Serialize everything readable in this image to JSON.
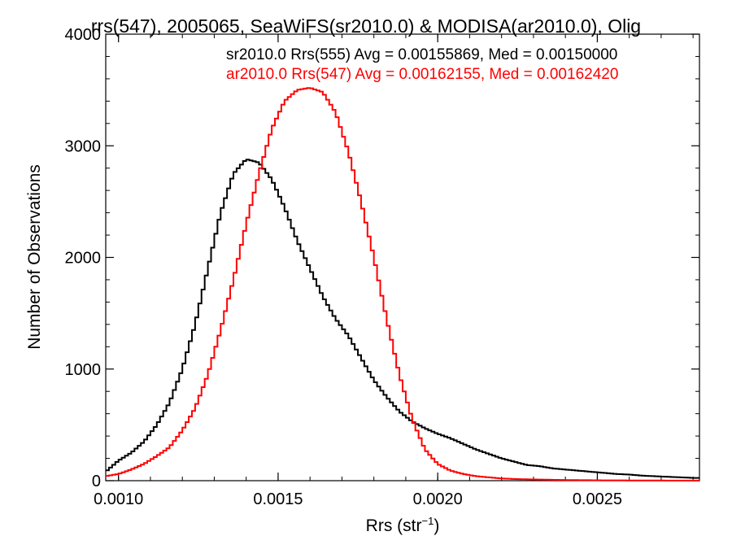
{
  "chart_data": {
    "type": "line",
    "step": true,
    "title": "rrs(547), 2005065, SeaWiFS(sr2010.0) & MODISA(ar2010.0), Olig",
    "xlabel": "Rrs (str",
    "xlabel_sup": "−1",
    "xlabel_end": ")",
    "ylabel": "Number of Observations",
    "xlim": [
      0.00096,
      0.00282
    ],
    "ylim": [
      0,
      4000
    ],
    "xticks": [
      0.001,
      0.0015,
      0.002,
      0.0025
    ],
    "xtick_labels": [
      "0.0010",
      "0.0015",
      "0.0020",
      "0.0025"
    ],
    "yticks": [
      0,
      1000,
      2000,
      3000,
      4000
    ],
    "ytick_labels": [
      "0",
      "1000",
      "2000",
      "3000",
      "4000"
    ],
    "bin_width": 1e-05,
    "series": [
      {
        "name": "sr2010.0 Rrs(555) Avg = 0.00155869, Med = 0.00150000",
        "color": "#000000",
        "x": [
          0.00096,
          0.001,
          0.00104,
          0.00108,
          0.00112,
          0.00116,
          0.0012,
          0.00124,
          0.00128,
          0.00132,
          0.00136,
          0.0014,
          0.00144,
          0.00148,
          0.00152,
          0.00156,
          0.0016,
          0.00164,
          0.00168,
          0.00172,
          0.00176,
          0.0018,
          0.00184,
          0.00188,
          0.00192,
          0.00196,
          0.002,
          0.00204,
          0.00208,
          0.00212,
          0.00216,
          0.0022,
          0.00224,
          0.00228,
          0.00232,
          0.00236,
          0.0024,
          0.00244,
          0.00248,
          0.00252,
          0.00256,
          0.0026,
          0.00264,
          0.00268,
          0.00272,
          0.00276,
          0.0028,
          0.00282
        ],
        "y": [
          80,
          180,
          250,
          350,
          500,
          700,
          1000,
          1400,
          1900,
          2400,
          2750,
          2880,
          2850,
          2700,
          2450,
          2150,
          1900,
          1650,
          1450,
          1300,
          1100,
          900,
          750,
          620,
          530,
          470,
          420,
          380,
          330,
          280,
          240,
          200,
          170,
          140,
          130,
          110,
          100,
          90,
          80,
          70,
          60,
          55,
          45,
          40,
          35,
          30,
          25,
          25
        ]
      },
      {
        "name": "ar2010.0 Rrs(547) Avg = 0.00162155, Med = 0.00162420",
        "color": "#ff0000",
        "x": [
          0.00096,
          0.001,
          0.00104,
          0.00108,
          0.00112,
          0.00116,
          0.0012,
          0.00124,
          0.00128,
          0.00132,
          0.00136,
          0.0014,
          0.00144,
          0.00148,
          0.00152,
          0.00156,
          0.0016,
          0.00164,
          0.00168,
          0.00172,
          0.00176,
          0.0018,
          0.00184,
          0.00188,
          0.00192,
          0.00196,
          0.002,
          0.00204,
          0.00208,
          0.00212,
          0.00216,
          0.0022,
          0.00224,
          0.00228,
          0.00232,
          0.00236,
          0.0024,
          0.00244,
          0.00248,
          0.00252,
          0.00256,
          0.0026,
          0.00264,
          0.00268,
          0.00272,
          0.00276,
          0.0028,
          0.00282
        ],
        "y": [
          40,
          60,
          100,
          150,
          220,
          300,
          450,
          650,
          950,
          1350,
          1800,
          2300,
          2750,
          3150,
          3400,
          3500,
          3520,
          3480,
          3300,
          2950,
          2500,
          2000,
          1450,
          950,
          550,
          280,
          150,
          90,
          60,
          40,
          30,
          20,
          15,
          12,
          10,
          8,
          6,
          5,
          4,
          3,
          3,
          2,
          2,
          2,
          1,
          1,
          1,
          1
        ]
      }
    ]
  }
}
